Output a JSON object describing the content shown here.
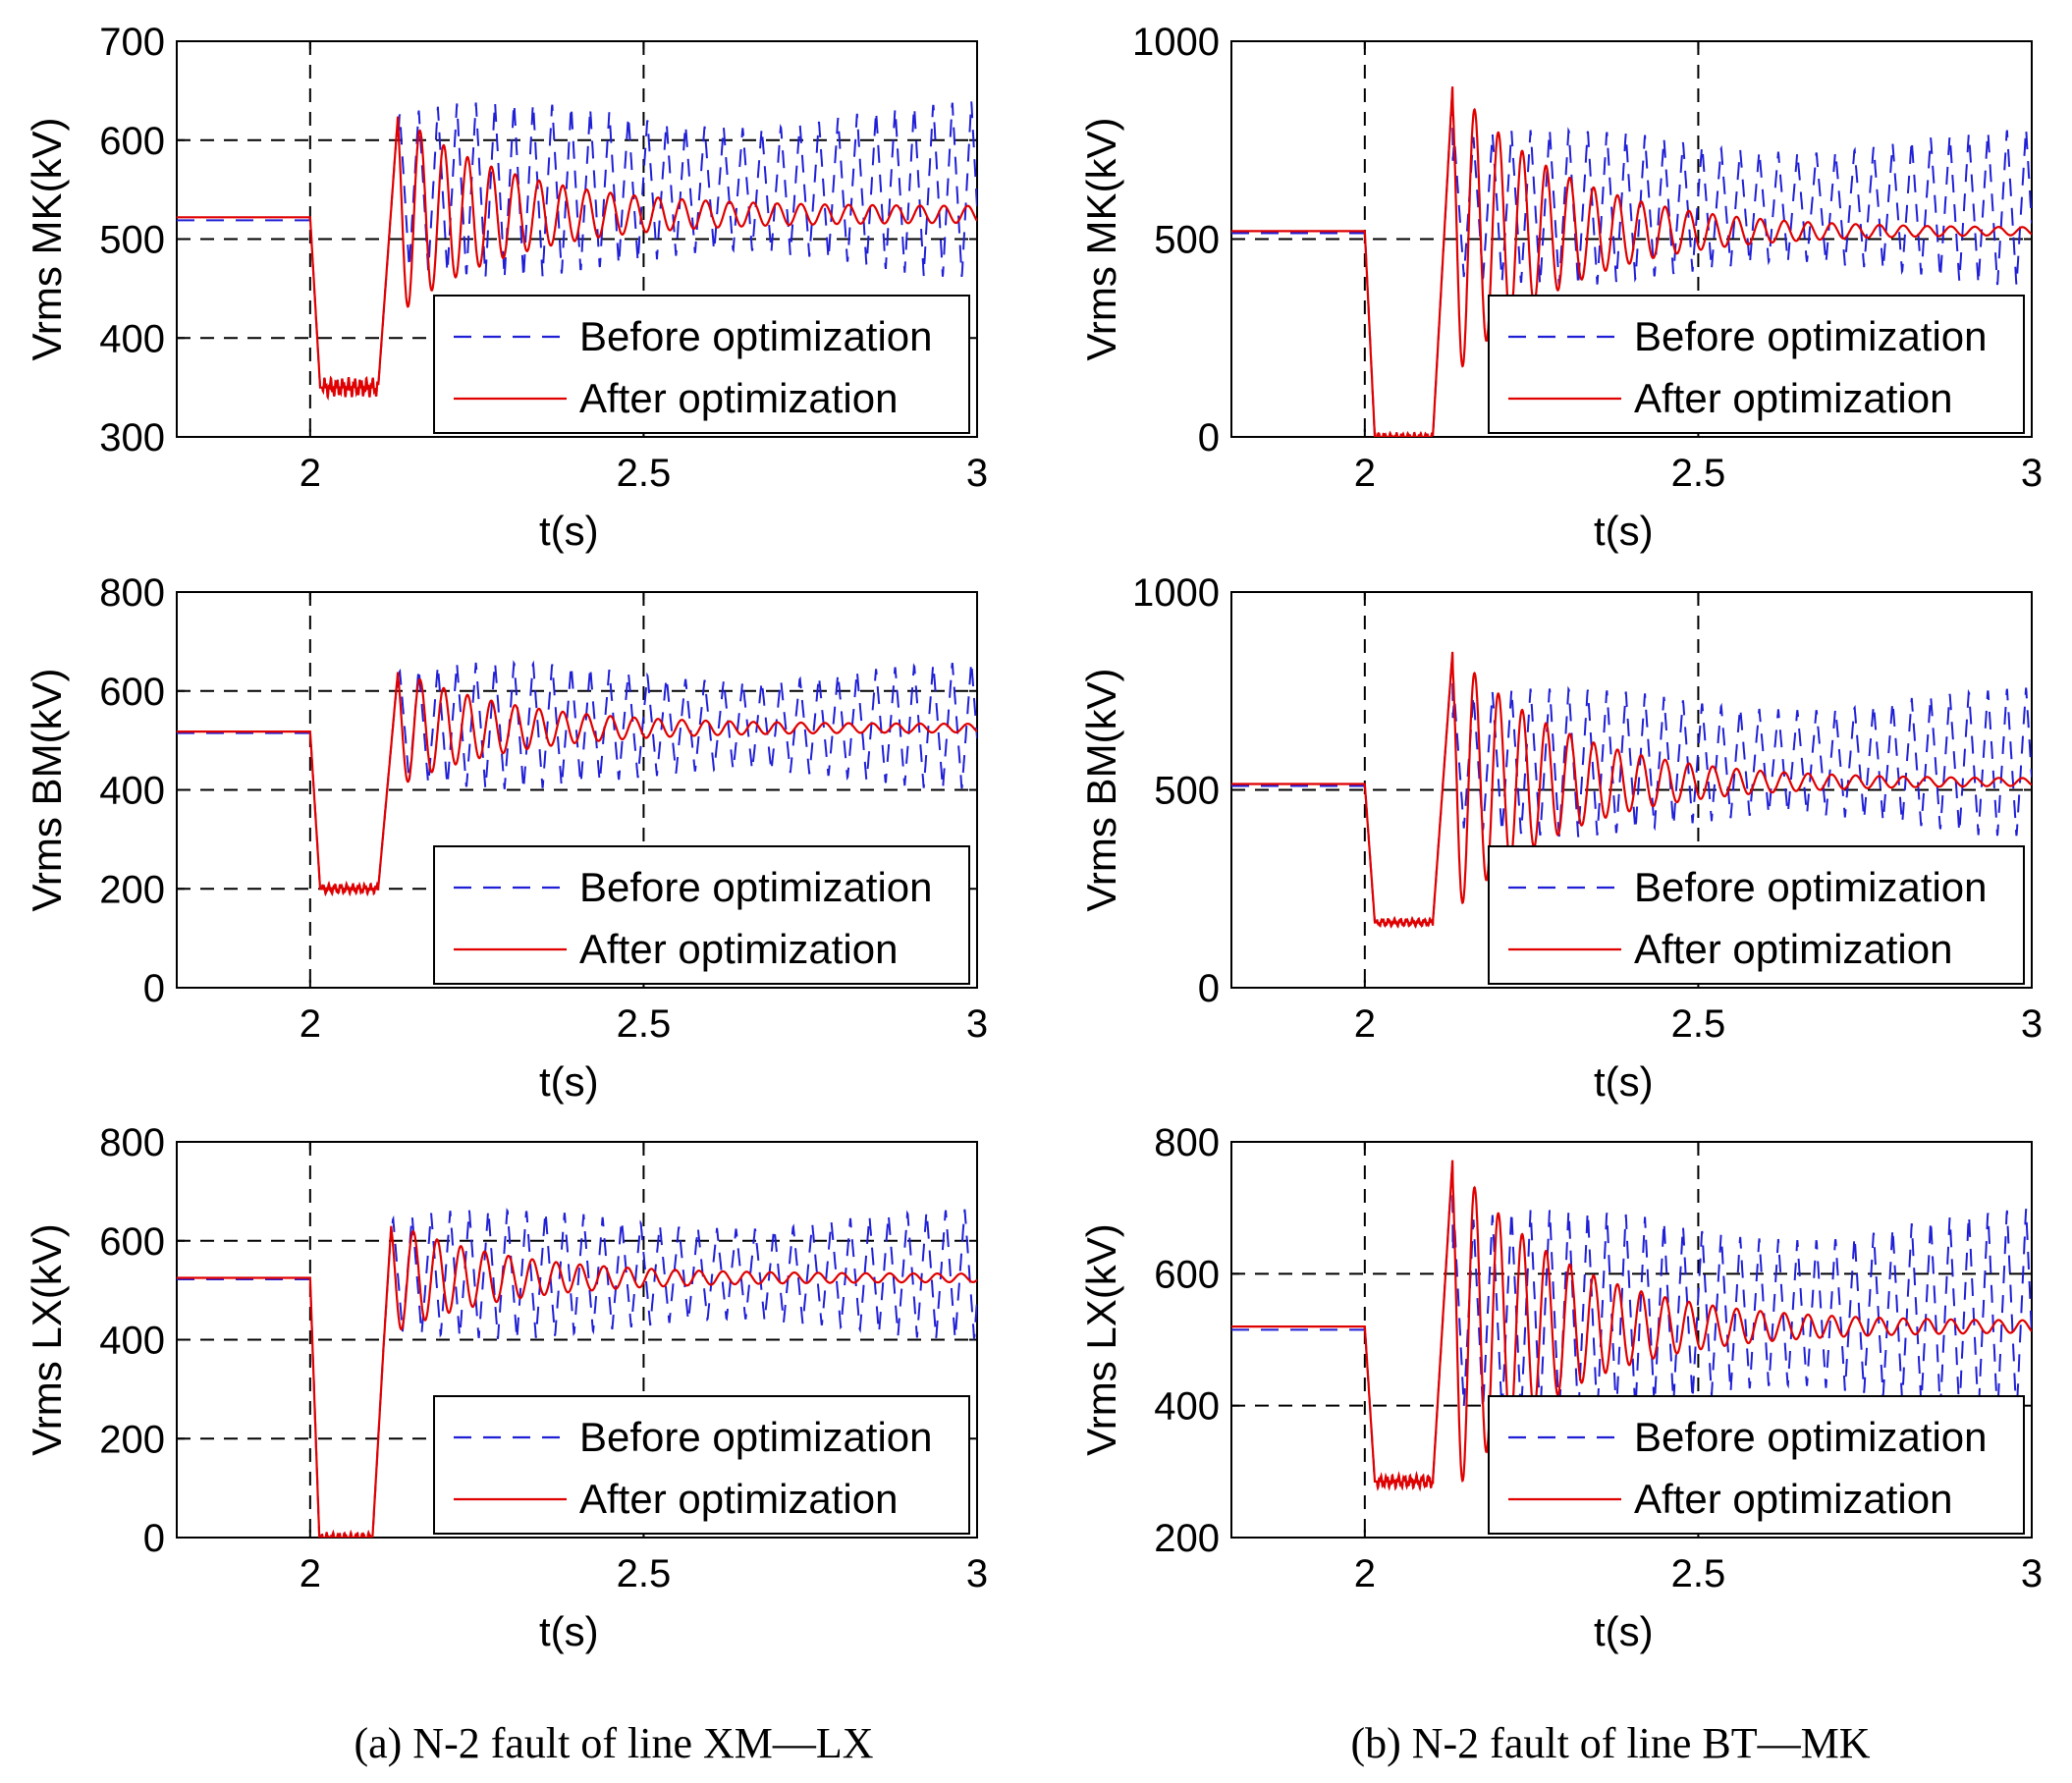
{
  "captions": {
    "left": "(a) N-2 fault of line XM—LX",
    "right": "(b) N-2 fault of line BT—MK"
  },
  "colors": {
    "before": "#1f1fd6",
    "after": "#e00000",
    "grid": "#000000"
  },
  "legend": {
    "before": "Before optimization",
    "after": "After optimization"
  },
  "chart_data": [
    {
      "id": "a1",
      "type": "line",
      "ylabel": "Vrms MK(kV)",
      "xlabel": "t(s)",
      "xlim": [
        1.8,
        3
      ],
      "ylim": [
        300,
        700
      ],
      "yticks": [
        "300",
        "400",
        "500",
        "600",
        "700"
      ],
      "xticks": [
        "2",
        "2.5",
        "3"
      ],
      "grid_x": [
        2,
        2.5
      ],
      "grid_y": [
        400,
        500,
        600
      ],
      "pre": 522,
      "fault_min": 350,
      "fault_end": 0.12,
      "peak": 628,
      "ss": 525,
      "osc_lo": 460,
      "osc_hi": 640,
      "series": [
        {
          "name": "Before optimization"
        },
        {
          "name": "After optimization"
        }
      ]
    },
    {
      "id": "b1",
      "type": "line",
      "ylabel": "Vrms MK(kV)",
      "xlabel": "t(s)",
      "xlim": [
        1.8,
        3
      ],
      "ylim": [
        0,
        1000
      ],
      "yticks": [
        "0",
        "500",
        "1000"
      ],
      "xticks": [
        "2",
        "2.5",
        "3"
      ],
      "grid_x": [
        2,
        2.5
      ],
      "grid_y": [
        500
      ],
      "pre": 520,
      "fault_min": 0,
      "fault_end": 0.12,
      "peak": 900,
      "ss": 520,
      "osc_lo": 380,
      "osc_hi": 780,
      "series": [
        {
          "name": "Before optimization"
        },
        {
          "name": "After optimization"
        }
      ]
    },
    {
      "id": "a2",
      "type": "line",
      "ylabel": "Vrms BM(kV)",
      "xlabel": "t(s)",
      "xlim": [
        1.8,
        3
      ],
      "ylim": [
        0,
        800
      ],
      "yticks": [
        "0",
        "200",
        "400",
        "600",
        "800"
      ],
      "xticks": [
        "2",
        "2.5",
        "3"
      ],
      "grid_x": [
        2,
        2.5
      ],
      "grid_y": [
        200,
        400,
        600
      ],
      "pre": 518,
      "fault_min": 200,
      "fault_end": 0.12,
      "peak": 645,
      "ss": 525,
      "osc_lo": 400,
      "osc_hi": 660,
      "series": [
        {
          "name": "Before optimization"
        },
        {
          "name": "After optimization"
        }
      ]
    },
    {
      "id": "b2",
      "type": "line",
      "ylabel": "Vrms BM(kV)",
      "xlabel": "t(s)",
      "xlim": [
        1.8,
        3
      ],
      "ylim": [
        0,
        1000
      ],
      "yticks": [
        "0",
        "500",
        "1000"
      ],
      "xticks": [
        "2",
        "2.5",
        "3"
      ],
      "grid_x": [
        2,
        2.5
      ],
      "grid_y": [
        500
      ],
      "pre": 515,
      "fault_min": 165,
      "fault_end": 0.12,
      "peak": 860,
      "ss": 520,
      "osc_lo": 380,
      "osc_hi": 760,
      "series": [
        {
          "name": "Before optimization"
        },
        {
          "name": "After optimization"
        }
      ]
    },
    {
      "id": "a3",
      "type": "line",
      "ylabel": "Vrms LX(kV)",
      "xlabel": "t(s)",
      "xlim": [
        1.8,
        3
      ],
      "ylim": [
        0,
        800
      ],
      "yticks": [
        "0",
        "200",
        "400",
        "600",
        "800"
      ],
      "xticks": [
        "2",
        "2.5",
        "3"
      ],
      "grid_x": [
        2,
        2.5
      ],
      "grid_y": [
        200,
        400,
        600
      ],
      "pre": 525,
      "fault_min": 0,
      "fault_end": 0.11,
      "peak": 640,
      "ss": 525,
      "osc_lo": 400,
      "osc_hi": 665,
      "series": [
        {
          "name": "Before optimization"
        },
        {
          "name": "After optimization"
        }
      ]
    },
    {
      "id": "b3",
      "type": "line",
      "ylabel": "Vrms LX(kV)",
      "xlabel": "t(s)",
      "xlim": [
        1.8,
        3
      ],
      "ylim": [
        200,
        800
      ],
      "yticks": [
        "200",
        "400",
        "600",
        "800"
      ],
      "xticks": [
        "2",
        "2.5",
        "3"
      ],
      "grid_x": [
        2,
        2.5
      ],
      "grid_y": [
        400,
        600
      ],
      "pre": 520,
      "fault_min": 285,
      "fault_end": 0.12,
      "peak": 780,
      "ss": 520,
      "osc_lo": 380,
      "osc_hi": 700,
      "series": [
        {
          "name": "Before optimization"
        },
        {
          "name": "After optimization"
        }
      ]
    }
  ]
}
